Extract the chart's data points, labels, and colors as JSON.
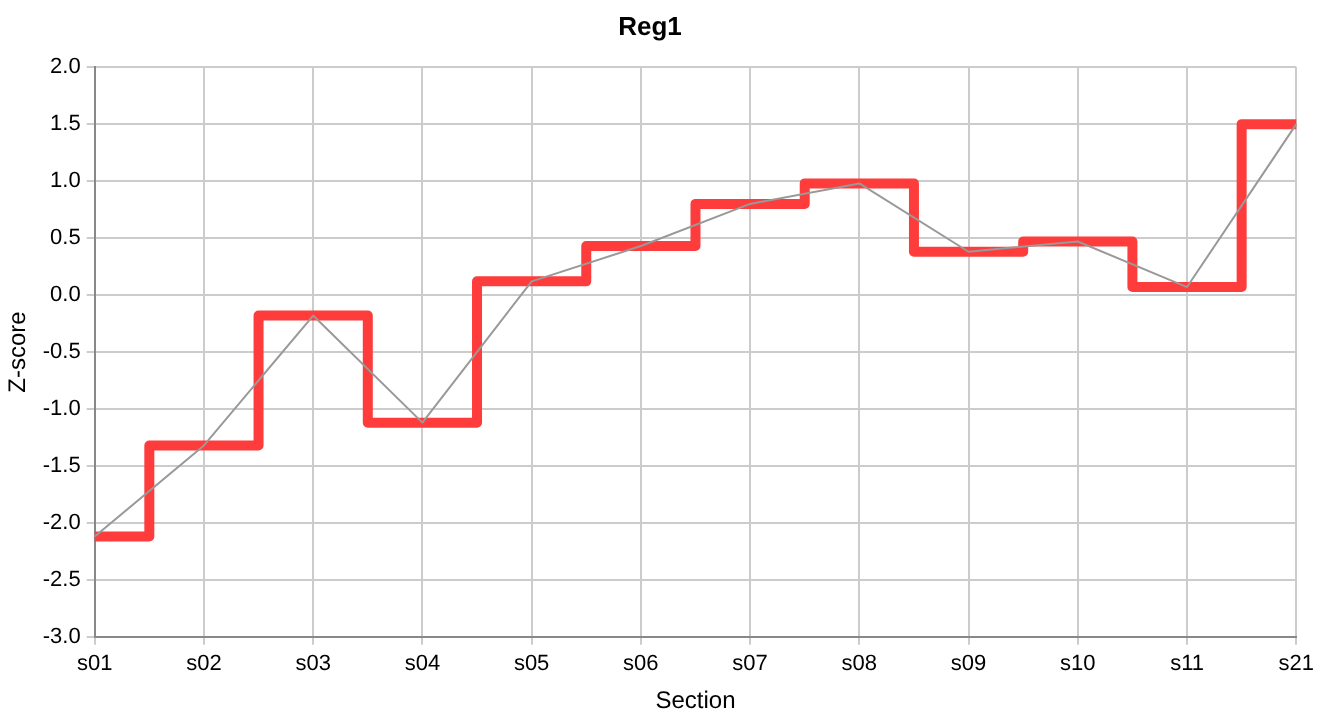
{
  "chart_data": {
    "type": "line",
    "title": "Reg1",
    "xlabel": "Section",
    "ylabel": "Z-score",
    "categories": [
      "s01",
      "s02",
      "s03",
      "s04",
      "s05",
      "s06",
      "s07",
      "s08",
      "s09",
      "s10",
      "s11",
      "s21"
    ],
    "series": [
      {
        "type": "line",
        "color": "#999999",
        "values": [
          -2.12,
          -1.32,
          -0.18,
          -1.12,
          0.12,
          0.43,
          0.8,
          0.98,
          0.38,
          0.47,
          0.07,
          1.5
        ]
      },
      {
        "type": "step",
        "color": "#ff3c3c",
        "values": [
          -2.12,
          -1.32,
          -0.18,
          -1.12,
          0.12,
          0.43,
          0.8,
          0.98,
          0.38,
          0.47,
          0.07,
          1.5
        ]
      }
    ],
    "ylim": [
      -3,
      2
    ],
    "yticks": [
      {
        "value": -3,
        "label": "-3.0"
      },
      {
        "value": -2.5,
        "label": "-2.5"
      },
      {
        "value": -2,
        "label": "-2.0"
      },
      {
        "value": -1.5,
        "label": "-1.5"
      },
      {
        "value": -1,
        "label": "-1.0"
      },
      {
        "value": -0.5,
        "label": "-0.5"
      },
      {
        "value": 0,
        "label": "0.0"
      },
      {
        "value": 0.5,
        "label": "0.5"
      },
      {
        "value": 1,
        "label": "1.0"
      },
      {
        "value": 1.5,
        "label": "1.5"
      },
      {
        "value": 2,
        "label": "2.0"
      }
    ],
    "grid": true,
    "legend": false,
    "marker": "none",
    "line_style": "solid"
  }
}
